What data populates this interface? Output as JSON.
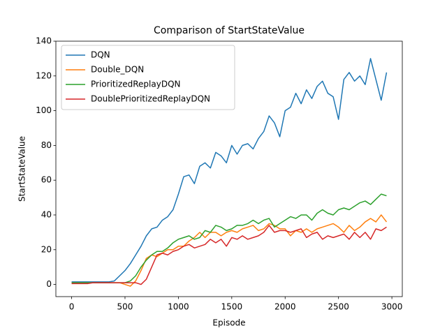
{
  "chart_data": {
    "type": "line",
    "title": "Comparison of StartStateValue",
    "x_label": "Episode",
    "y_label": "StartStateValue",
    "x": [
      0,
      50,
      100,
      150,
      200,
      250,
      300,
      350,
      400,
      450,
      500,
      550,
      600,
      650,
      700,
      750,
      800,
      850,
      900,
      950,
      1000,
      1050,
      1100,
      1150,
      1200,
      1250,
      1300,
      1350,
      1400,
      1450,
      1500,
      1550,
      1600,
      1650,
      1700,
      1750,
      1800,
      1850,
      1900,
      1950,
      2000,
      2050,
      2100,
      2150,
      2200,
      2250,
      2300,
      2350,
      2400,
      2450,
      2500,
      2550,
      2600,
      2650,
      2700,
      2750,
      2800,
      2850,
      2900,
      2950
    ],
    "series": [
      {
        "name": "DQN",
        "color": "#1f77b4",
        "values": [
          1.5,
          1.5,
          1.5,
          1.5,
          1.5,
          1.5,
          1.5,
          1.5,
          2,
          5,
          8,
          12,
          17,
          22,
          28,
          32,
          33,
          37,
          39,
          43,
          52,
          62,
          63,
          58,
          68,
          70,
          67,
          76,
          74,
          70,
          80,
          75,
          80,
          81,
          78,
          84,
          88,
          97,
          93,
          85,
          100,
          102,
          110,
          104,
          112,
          107,
          114,
          117,
          110,
          108,
          95,
          118,
          122,
          117,
          120,
          115,
          130,
          118,
          106,
          122
        ]
      },
      {
        "name": "Double_DQN",
        "color": "#ff7f0e",
        "values": [
          1,
          1,
          1,
          1,
          1,
          1,
          1,
          1,
          1,
          1,
          0,
          -1,
          2,
          8,
          15,
          17,
          16,
          18,
          20,
          20,
          22,
          22,
          25,
          27,
          30,
          27,
          30,
          30,
          28,
          30,
          31,
          30,
          32,
          33,
          34,
          31,
          32,
          35,
          34,
          32,
          32,
          28,
          31,
          30,
          32,
          30,
          32,
          33,
          34,
          35,
          33,
          30,
          34,
          31,
          33,
          36,
          38,
          36,
          40,
          36
        ]
      },
      {
        "name": "PrioritizedReplayDQN",
        "color": "#2ca02c",
        "values": [
          1,
          1,
          1,
          1,
          1,
          1,
          1,
          1,
          1,
          1,
          1,
          2,
          5,
          10,
          14,
          17,
          19,
          19,
          21,
          24,
          26,
          27,
          28,
          26,
          27,
          31,
          30,
          34,
          33,
          31,
          32,
          34,
          34,
          35,
          37,
          35,
          37,
          38,
          33,
          35,
          37,
          39,
          38,
          40,
          40,
          37,
          41,
          43,
          41,
          40,
          43,
          44,
          43,
          45,
          47,
          48,
          46,
          49,
          52,
          51
        ]
      },
      {
        "name": "DoublePrioritizedReplayDQN",
        "color": "#d62728",
        "values": [
          0.5,
          0.5,
          0.5,
          0.5,
          1,
          1,
          1,
          1,
          1,
          1,
          1,
          1,
          1,
          0,
          3,
          10,
          17,
          18,
          17,
          19,
          20,
          22,
          23,
          21,
          22,
          23,
          26,
          24,
          26,
          22,
          27,
          26,
          28,
          26,
          27,
          28,
          30,
          34,
          30,
          31,
          31,
          30,
          31,
          32,
          27,
          29,
          30,
          26,
          28,
          27,
          28,
          29,
          26,
          30,
          27,
          30,
          26,
          32,
          31,
          33
        ]
      }
    ],
    "xlim": [
      -147.5,
      3097.5
    ],
    "xticks": [
      0,
      500,
      1000,
      1500,
      2000,
      2500,
      3000
    ],
    "ylim": [
      -7,
      140
    ],
    "yticks": [
      0,
      20,
      40,
      60,
      80,
      100,
      120,
      140
    ],
    "legend": "upper left"
  }
}
